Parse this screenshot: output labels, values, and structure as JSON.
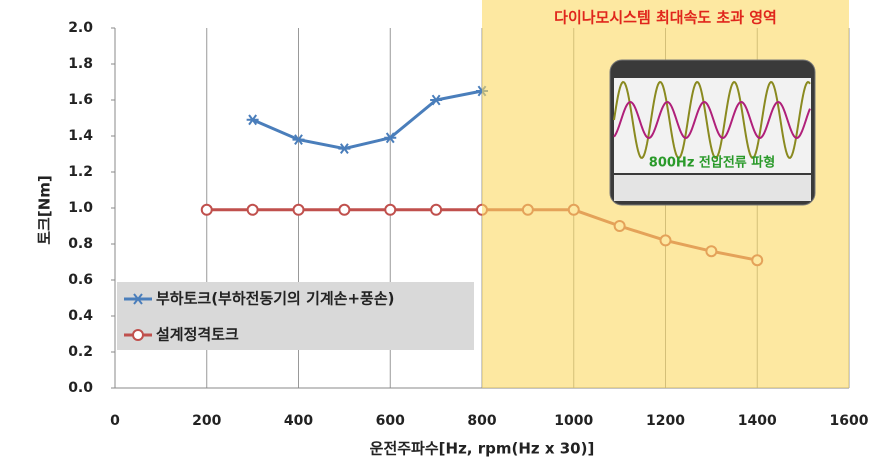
{
  "chart_data": {
    "type": "line",
    "annotation": "다이나모시스템 최대속도 초과 영역",
    "inset_label": "800Hz 전압전류 파형",
    "x_label": "운전주파수[Hz, rpm(Hz x 30)]",
    "y_label": "토크[Nm]",
    "shaded_region": [
      800,
      1600
    ],
    "series": [
      {
        "name": "부하토크(부하전동기의 기계손+풍손)",
        "color": "#4a7ebb",
        "marker": "star",
        "x": [
          300,
          400,
          500,
          600,
          700,
          800
        ],
        "values": [
          1.49,
          1.38,
          1.33,
          1.39,
          1.6,
          1.65
        ]
      },
      {
        "name": "설계정격토크",
        "color": "#c0504d",
        "marker": "circle",
        "x": [
          200,
          300,
          400,
          500,
          600,
          700,
          800,
          900,
          1000,
          1100,
          1200,
          1300,
          1400
        ],
        "values": [
          0.99,
          0.99,
          0.99,
          0.99,
          0.99,
          0.99,
          0.99,
          0.99,
          0.99,
          0.9,
          0.82,
          0.76,
          0.71
        ]
      }
    ],
    "xlim": [
      0,
      1600
    ],
    "xticks": [
      0,
      200,
      400,
      600,
      800,
      1000,
      1200,
      1400,
      1600
    ],
    "ylim": [
      0,
      2
    ],
    "yticks": [
      {
        "value": 0,
        "label": "0.0"
      },
      {
        "value": 0.2,
        "label": "0.2"
      },
      {
        "value": 0.4,
        "label": "0.4"
      },
      {
        "value": 0.6,
        "label": "0.6"
      },
      {
        "value": 0.8,
        "label": "0.8"
      },
      {
        "value": 1,
        "label": "1.0"
      },
      {
        "value": 1.2,
        "label": "1.2"
      },
      {
        "value": 1.4,
        "label": "1.4"
      },
      {
        "value": 1.6,
        "label": "1.6"
      },
      {
        "value": 1.8,
        "label": "1.8"
      },
      {
        "value": 2,
        "label": "2.0"
      }
    ],
    "grid": "x"
  }
}
